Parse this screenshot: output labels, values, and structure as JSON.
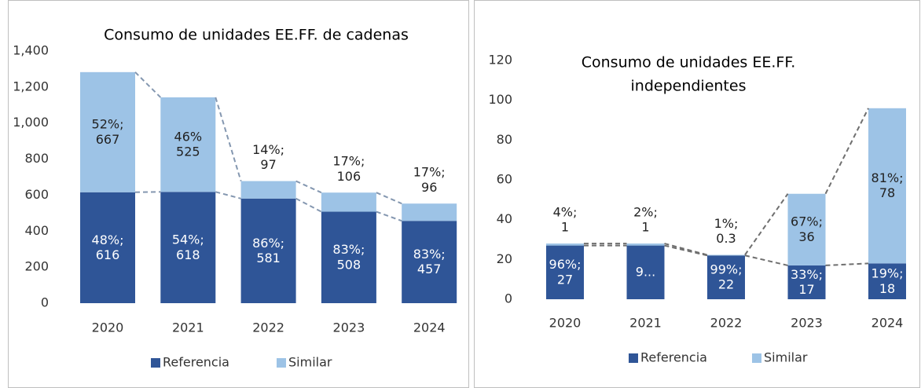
{
  "chart_data": [
    {
      "type": "bar",
      "stacked": true,
      "title": [
        "Consumo de unidades EE.FF. de cadenas"
      ],
      "categories": [
        "2020",
        "2021",
        "2022",
        "2023",
        "2024"
      ],
      "series": [
        {
          "name": "Referencia",
          "color": "#2f5597",
          "values": [
            616,
            618,
            581,
            508,
            457
          ],
          "value_labels": [
            "48%;\n616",
            "54%;\n618",
            "86%;\n581",
            "83%;\n508",
            "83%;\n457"
          ]
        },
        {
          "name": "Similar",
          "color": "#9dc3e6",
          "values": [
            667,
            525,
            97,
            106,
            96
          ],
          "value_labels": [
            "52%;\n667",
            "46%\n525",
            "14%;\n97",
            "17%;\n106",
            "17%;\n96"
          ]
        }
      ],
      "ylim": [
        0,
        1400
      ],
      "yticks": [
        0,
        200,
        400,
        600,
        800,
        {
          "value": 1000,
          "label": "1,000"
        },
        {
          "value": 1200,
          "label": "1,200"
        },
        {
          "value": 1400,
          "label": "1,400"
        }
      ],
      "connector_lines": true,
      "legend": "bottom"
    },
    {
      "type": "bar",
      "stacked": true,
      "title": [
        "Consumo de unidades EE.FF.",
        "independientes"
      ],
      "categories": [
        "2020",
        "2021",
        "2022",
        "2023",
        "2024"
      ],
      "series": [
        {
          "name": "Referencia",
          "color": "#2f5597",
          "values": [
            27,
            27,
            22,
            17,
            18
          ],
          "value_labels": [
            "96%;\n27",
            "9...",
            "99%;\n22",
            "33%;\n17",
            "19%;\n18"
          ]
        },
        {
          "name": "Similar",
          "color": "#9dc3e6",
          "values": [
            1,
            1,
            0.3,
            36,
            78
          ],
          "value_labels": [
            "4%;\n1",
            "2%;\n1",
            "1%;\n0.3",
            "67%;\n36",
            "81%;\n78"
          ]
        }
      ],
      "ylim": [
        0,
        120
      ],
      "yticks": [
        0,
        20,
        40,
        60,
        80,
        100,
        120
      ],
      "connector_lines": true,
      "legend": "bottom"
    }
  ]
}
